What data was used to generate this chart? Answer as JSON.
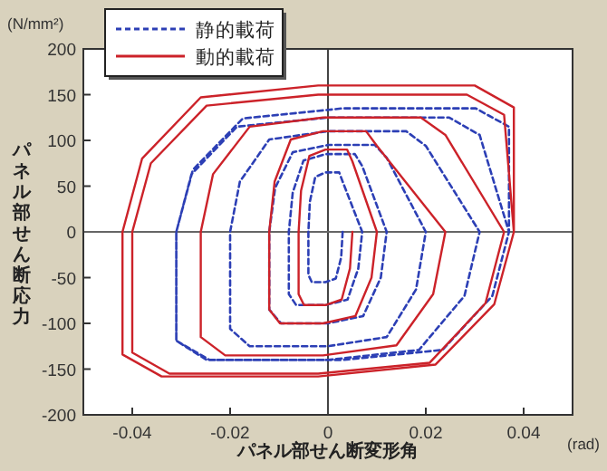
{
  "chart_data": {
    "type": "line",
    "xlabel": "パネル部せん断変形角",
    "ylabel": "パネル部せん断応力",
    "annotations": [
      "(N/mm²)",
      "(rad)"
    ],
    "xlim": [
      -0.05,
      0.05
    ],
    "xticks": [
      -0.04,
      -0.02,
      0,
      0.02,
      0.04
    ],
    "ylim": [
      -200,
      200
    ],
    "yticks": [
      -200,
      -150,
      -100,
      -50,
      0,
      50,
      100,
      150,
      200
    ],
    "ref_lines": [
      {
        "axis": "x",
        "value": 0,
        "color": "#444444"
      },
      {
        "axis": "y",
        "value": 0,
        "color": "#666666"
      }
    ],
    "legend": "top left",
    "marker": "none",
    "series": [
      {
        "name": "静的載荷",
        "color": "#2c3fb5",
        "line_style": "dashed",
        "x": [
          0.003,
          0.0027,
          0.0016,
          -0.0005,
          -0.0033,
          -0.004,
          -0.004,
          -0.0037,
          -0.0026,
          -0.0005,
          0.0023,
          0.003,
          0.007,
          0.0062,
          0.004,
          -0.0005,
          -0.0065,
          -0.008,
          -0.008,
          -0.0072,
          -0.005,
          -0.0005,
          0.0055,
          0.007,
          0.012,
          0.0108,
          0.0072,
          0,
          -0.0096,
          -0.012,
          -0.012,
          -0.0108,
          -0.0072,
          0,
          0.0096,
          0.012,
          0.02,
          0.018,
          0.012,
          0,
          -0.016,
          -0.02,
          -0.02,
          -0.018,
          -0.012,
          0,
          0.016,
          0.02,
          0.031,
          0.0279,
          0.0186,
          0,
          -0.0248,
          -0.031,
          -0.031,
          -0.0279,
          -0.0186,
          0,
          0.0248,
          0.031,
          0.037,
          0.0336,
          0.0234,
          0.003,
          -0.0242,
          -0.031,
          -0.031,
          -0.0276,
          -0.0174,
          0.003,
          0.0302,
          0.037,
          0.037
        ],
        "values": [
          0,
          -28,
          -51,
          -55,
          -55,
          -47,
          0,
          33,
          60,
          65,
          65,
          55,
          0,
          -40,
          -74,
          -80,
          -80,
          -68,
          0,
          43,
          78,
          85,
          85,
          72,
          0,
          -50,
          -92,
          -100,
          -100,
          -85,
          0,
          48,
          87,
          95,
          95,
          81,
          0,
          -63,
          -115,
          -125,
          -125,
          -106,
          0,
          55,
          101,
          110,
          110,
          94,
          0,
          -70,
          -129,
          -140,
          -140,
          -119,
          0,
          63,
          115,
          125,
          125,
          106,
          0,
          -70,
          -129,
          -140,
          -140,
          -119,
          0,
          68,
          124,
          135,
          135,
          115,
          0
        ]
      },
      {
        "name": "動的載荷",
        "color": "#cc2229",
        "line_style": "solid",
        "x": [
          0.005,
          0.0045,
          0.0028,
          -0.0005,
          -0.0049,
          -0.006,
          -0.006,
          -0.0055,
          -0.0038,
          -0.0005,
          0.0039,
          0.005,
          0.01,
          0.0089,
          0.0056,
          -0.001,
          -0.0098,
          -0.012,
          -0.012,
          -0.0109,
          -0.0076,
          -0.001,
          0.0078,
          0.01,
          0.024,
          0.0215,
          0.014,
          -0.001,
          -0.021,
          -0.026,
          -0.026,
          -0.0235,
          -0.016,
          -0.001,
          0.019,
          0.024,
          0.036,
          0.0322,
          0.0208,
          -0.002,
          -0.0324,
          -0.04,
          -0.04,
          -0.0362,
          -0.0248,
          -0.002,
          0.0284,
          0.036,
          0.038,
          0.034,
          0.022,
          -0.002,
          -0.034,
          -0.042,
          -0.042,
          -0.038,
          -0.026,
          -0.002,
          0.03,
          0.038,
          0.038
        ],
        "values": [
          0,
          -40,
          -74,
          -80,
          -80,
          -68,
          0,
          45,
          83,
          90,
          90,
          77,
          0,
          -50,
          -92,
          -100,
          -100,
          -85,
          0,
          55,
          101,
          110,
          110,
          94,
          0,
          -68,
          -124,
          -135,
          -135,
          -115,
          0,
          63,
          115,
          125,
          125,
          106,
          0,
          -78,
          -143,
          -155,
          -155,
          -132,
          0,
          75,
          138,
          150,
          150,
          128,
          0,
          -79,
          -145,
          -158,
          -158,
          -134,
          0,
          80,
          147,
          160,
          160,
          136,
          0
        ]
      }
    ]
  }
}
